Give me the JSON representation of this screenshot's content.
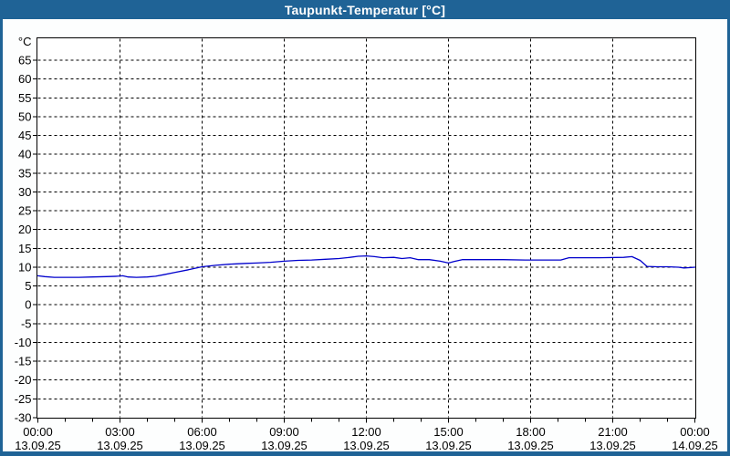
{
  "title": "Taupunkt-Temperatur [°C]",
  "colors": {
    "titlebar_bg": "#1F6396",
    "titlebar_text": "#FFFFFF",
    "frame": "#1F6396",
    "page_bg": "#FDFEFE",
    "plot_bg": "#FFFFFF",
    "plot_border": "#000000",
    "grid": "#000000",
    "tick_text": "#000000",
    "series_line": "#0000CC"
  },
  "chart_data": {
    "type": "line",
    "title": "Taupunkt-Temperatur [°C]",
    "ylabel": "°C",
    "y_unit_label": "°C",
    "xlim_hours": [
      0,
      24
    ],
    "ylim": [
      -30,
      70
    ],
    "y_tick_step": 5,
    "y_tick_values": [
      -30,
      -25,
      -20,
      -15,
      -10,
      -5,
      0,
      5,
      10,
      15,
      20,
      25,
      30,
      35,
      40,
      45,
      50,
      55,
      60,
      65
    ],
    "grid": "dashed",
    "x_minor_tick_every_hours": 1,
    "x_major_tick_every_hours": 3,
    "x_major_ticks": [
      {
        "hour": 0,
        "time": "00:00",
        "date": "13.09.25"
      },
      {
        "hour": 3,
        "time": "03:00",
        "date": "13.09.25"
      },
      {
        "hour": 6,
        "time": "06:00",
        "date": "13.09.25"
      },
      {
        "hour": 9,
        "time": "09:00",
        "date": "13.09.25"
      },
      {
        "hour": 12,
        "time": "12:00",
        "date": "13.09.25"
      },
      {
        "hour": 15,
        "time": "15:00",
        "date": "13.09.25"
      },
      {
        "hour": 18,
        "time": "18:00",
        "date": "13.09.25"
      },
      {
        "hour": 21,
        "time": "21:00",
        "date": "13.09.25"
      },
      {
        "hour": 24,
        "time": "00:00",
        "date": "14.09.25"
      }
    ],
    "series": [
      {
        "name": "Taupunkt-Temperatur",
        "color": "#0000CC",
        "points": [
          [
            0.0,
            7.7
          ],
          [
            0.25,
            7.5
          ],
          [
            0.6,
            7.3
          ],
          [
            1.0,
            7.3
          ],
          [
            1.5,
            7.3
          ],
          [
            2.0,
            7.4
          ],
          [
            2.5,
            7.5
          ],
          [
            2.9,
            7.6
          ],
          [
            3.1,
            7.7
          ],
          [
            3.3,
            7.4
          ],
          [
            3.6,
            7.3
          ],
          [
            4.0,
            7.4
          ],
          [
            4.3,
            7.6
          ],
          [
            4.6,
            8.0
          ],
          [
            5.0,
            8.6
          ],
          [
            5.5,
            9.3
          ],
          [
            6.0,
            10.1
          ],
          [
            6.5,
            10.5
          ],
          [
            7.0,
            10.8
          ],
          [
            7.6,
            11.0
          ],
          [
            8.0,
            11.1
          ],
          [
            8.5,
            11.3
          ],
          [
            9.0,
            11.6
          ],
          [
            9.5,
            11.8
          ],
          [
            10.0,
            11.9
          ],
          [
            10.5,
            12.1
          ],
          [
            11.0,
            12.3
          ],
          [
            11.4,
            12.6
          ],
          [
            11.7,
            12.9
          ],
          [
            12.0,
            13.0
          ],
          [
            12.3,
            12.8
          ],
          [
            12.6,
            12.5
          ],
          [
            13.0,
            12.6
          ],
          [
            13.3,
            12.3
          ],
          [
            13.6,
            12.5
          ],
          [
            13.9,
            12.0
          ],
          [
            14.3,
            12.0
          ],
          [
            14.7,
            11.6
          ],
          [
            15.0,
            11.1
          ],
          [
            15.2,
            11.5
          ],
          [
            15.5,
            12.0
          ],
          [
            16.0,
            12.0
          ],
          [
            17.0,
            12.0
          ],
          [
            17.8,
            11.9
          ],
          [
            19.1,
            11.9
          ],
          [
            19.4,
            12.5
          ],
          [
            20.5,
            12.5
          ],
          [
            21.4,
            12.6
          ],
          [
            21.7,
            12.8
          ],
          [
            22.0,
            11.8
          ],
          [
            22.25,
            10.2
          ],
          [
            22.6,
            10.1
          ],
          [
            23.0,
            10.1
          ],
          [
            23.4,
            10.0
          ],
          [
            23.6,
            9.8
          ],
          [
            23.85,
            9.9
          ],
          [
            24.0,
            10.0
          ]
        ]
      }
    ]
  }
}
